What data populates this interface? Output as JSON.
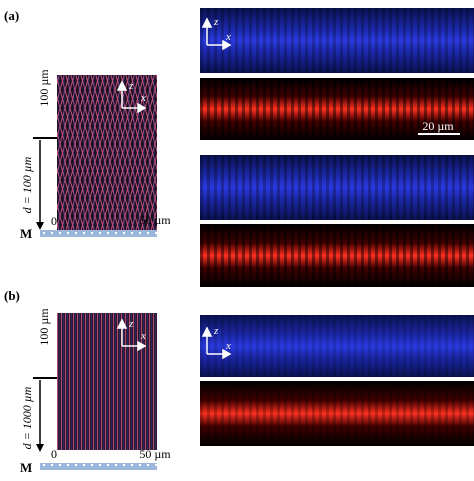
{
  "panels": [
    {
      "label": "(a)",
      "simulation": {
        "height_label": "100 µm",
        "distance_label": "d = 100 µm",
        "x_start": "0",
        "x_end": "50 µm",
        "mirror_label": "M",
        "axis_z": "z",
        "axis_x": "x"
      },
      "images": {
        "axis_z": "z",
        "axis_x": "x",
        "scale_bar": "20 µm"
      }
    },
    {
      "label": "(b)",
      "simulation": {
        "height_label": "100 µm",
        "distance_label": "d = 1000 µm",
        "x_start": "0",
        "x_end": "50 µm",
        "mirror_label": "M",
        "axis_z": "z",
        "axis_x": "x"
      },
      "images": {
        "axis_z": "z",
        "axis_x": "x"
      }
    }
  ]
}
